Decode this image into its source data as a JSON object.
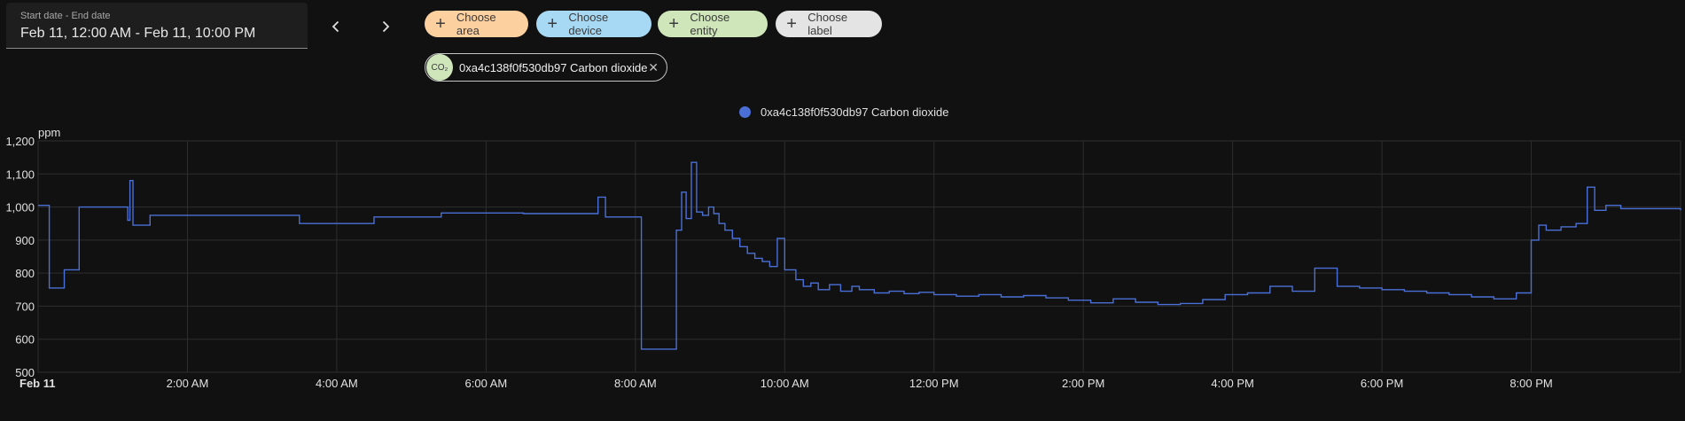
{
  "date_picker": {
    "label": "Start date - End date",
    "value": "Feb 11, 12:00 AM - Feb 11, 10:00 PM"
  },
  "nav": {
    "prev_icon": "chevron-left-icon",
    "next_icon": "chevron-right-icon"
  },
  "target_chips": [
    {
      "label": "Choose area",
      "color": "#fdd0a0"
    },
    {
      "label": "Choose device",
      "color": "#a8d9f4"
    },
    {
      "label": "Choose entity",
      "color": "#cfe6bb"
    },
    {
      "label": "Choose label",
      "color": "#e4e4e4"
    }
  ],
  "selected_entity": {
    "icon_text": "CO₂",
    "name": "0xa4c138f0f530db97 Carbon dioxide",
    "remove_icon": "close-icon"
  },
  "colors": {
    "line": "#4a6fd6",
    "grid": "#2e2e2e",
    "background": "#111111"
  },
  "chart_data": {
    "type": "line",
    "legend_position": "top-center",
    "grid": true,
    "ylabel": "ppm",
    "ylim": [
      500,
      1200
    ],
    "y_ticks": [
      "1,200",
      "1,100",
      "1,000",
      "900",
      "800",
      "700",
      "600",
      "500"
    ],
    "xlim_hours": [
      0,
      22
    ],
    "x_ticks": [
      "Feb 11",
      "2:00 AM",
      "4:00 AM",
      "6:00 AM",
      "8:00 AM",
      "10:00 AM",
      "12:00 PM",
      "2:00 PM",
      "4:00 PM",
      "6:00 PM",
      "8:00 PM"
    ],
    "series": [
      {
        "name": "0xa4c138f0f530db97 Carbon dioxide",
        "step": true,
        "x": [
          0,
          0.15,
          0.35,
          0.55,
          1.2,
          1.23,
          1.27,
          1.5,
          3.5,
          4.5,
          5.4,
          6.5,
          7.5,
          7.6,
          8.08,
          8.55,
          8.62,
          8.68,
          8.75,
          8.82,
          8.9,
          8.98,
          9.05,
          9.12,
          9.2,
          9.3,
          9.4,
          9.5,
          9.6,
          9.7,
          9.8,
          9.9,
          10.0,
          10.15,
          10.25,
          10.35,
          10.45,
          10.6,
          10.75,
          10.9,
          11.0,
          11.2,
          11.4,
          11.6,
          11.8,
          12.0,
          12.3,
          12.6,
          12.9,
          13.2,
          13.5,
          13.8,
          14.1,
          14.4,
          14.7,
          15.0,
          15.3,
          15.6,
          15.9,
          16.2,
          16.5,
          16.8,
          17.1,
          17.4,
          17.7,
          18.0,
          18.3,
          18.6,
          18.9,
          19.2,
          19.5,
          19.8,
          20.0,
          20.1,
          20.2,
          20.4,
          20.6,
          20.75,
          20.85,
          21.0,
          21.2,
          22.0
        ],
        "values": [
          1005,
          755,
          810,
          1000,
          960,
          1080,
          945,
          975,
          950,
          970,
          982,
          980,
          1030,
          970,
          570,
          930,
          1045,
          965,
          1135,
          985,
          975,
          1000,
          980,
          950,
          930,
          905,
          880,
          860,
          845,
          835,
          820,
          905,
          810,
          780,
          760,
          770,
          750,
          765,
          745,
          760,
          750,
          740,
          745,
          738,
          742,
          735,
          730,
          735,
          728,
          732,
          725,
          718,
          710,
          722,
          712,
          705,
          708,
          720,
          735,
          740,
          760,
          745,
          815,
          760,
          755,
          750,
          745,
          740,
          735,
          728,
          722,
          740,
          900,
          945,
          930,
          940,
          950,
          1060,
          990,
          1005,
          995,
          990
        ]
      }
    ]
  }
}
